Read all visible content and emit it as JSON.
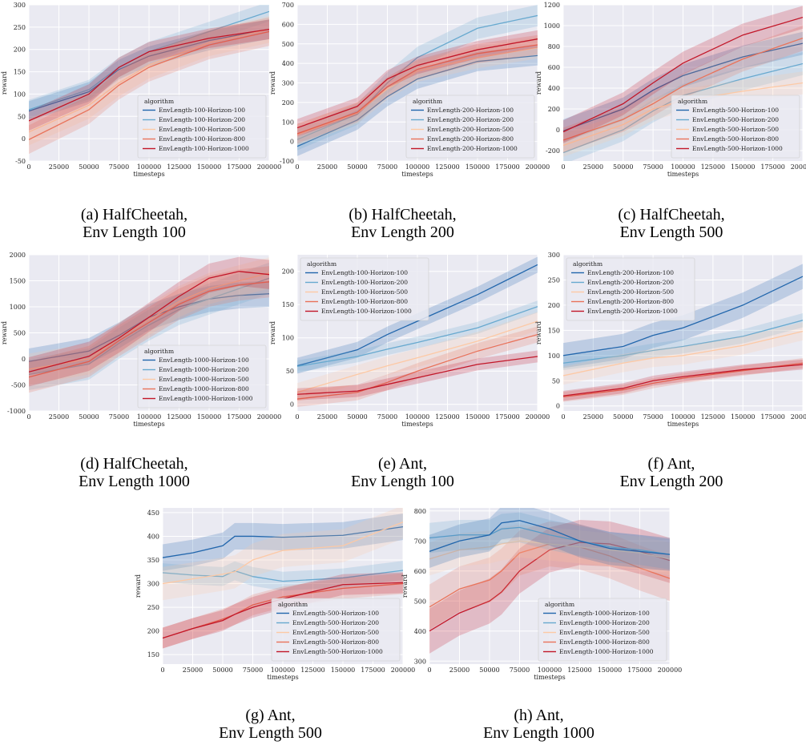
{
  "legend_title": "algorithm",
  "x_label": "timesteps",
  "y_label": "reward",
  "x_ticks": [
    0,
    25000,
    50000,
    75000,
    100000,
    125000,
    150000,
    175000,
    200000
  ],
  "colors": [
    "#2166ac",
    "#67a9cf",
    "#fdc9a5",
    "#e9735a",
    "#c21628"
  ],
  "captions": [
    {
      "line1": "(a) HalfCheetah,",
      "line2": "Env Length 100"
    },
    {
      "line1": "(b) HalfCheetah,",
      "line2": "Env Length 200"
    },
    {
      "line1": "(c) HalfCheetah,",
      "line2": "Env Length 500"
    },
    {
      "line1": "(d) HalfCheetah,",
      "line2": "Env Length 1000"
    },
    {
      "line1": "(e) Ant,",
      "line2": "Env Length 100"
    },
    {
      "line1": "(f) Ant,",
      "line2": "Env Length 200"
    },
    {
      "line1": "(g) Ant,",
      "line2": "Env Length 500"
    },
    {
      "line1": "(h) Ant,",
      "line2": "Env Length 1000"
    }
  ],
  "chart_data": [
    {
      "type": "line",
      "xlabel": "timesteps",
      "ylabel": "reward",
      "xlim": [
        0,
        200000
      ],
      "ylim": [
        -50,
        300
      ],
      "yticks": [
        -50,
        0,
        50,
        100,
        150,
        200,
        250,
        300
      ],
      "legend": "bottom-right",
      "grid": true,
      "x": [
        0,
        50000,
        75000,
        100000,
        150000,
        200000
      ],
      "series": [
        {
          "name": "EnvLength-100-Horizon-100",
          "values": [
            62,
            105,
            155,
            185,
            220,
            245
          ],
          "band": 22
        },
        {
          "name": "EnvLength-100-Horizon-200",
          "values": [
            65,
            110,
            160,
            195,
            240,
            285
          ],
          "band": 22
        },
        {
          "name": "EnvLength-100-Horizon-500",
          "values": [
            15,
            75,
            125,
            165,
            215,
            245
          ],
          "band": 30
        },
        {
          "name": "EnvLength-100-Horizon-800",
          "values": [
            -2,
            65,
            120,
            160,
            210,
            240
          ],
          "band": 32
        },
        {
          "name": "EnvLength-100-Horizon-1000",
          "values": [
            40,
            100,
            160,
            195,
            225,
            245
          ],
          "band": 22
        }
      ]
    },
    {
      "type": "line",
      "xlabel": "timesteps",
      "ylabel": "reward",
      "xlim": [
        0,
        200000
      ],
      "ylim": [
        -100,
        700
      ],
      "yticks": [
        -100,
        0,
        100,
        200,
        300,
        400,
        500,
        600,
        700
      ],
      "legend": "bottom-right",
      "grid": true,
      "x": [
        0,
        50000,
        75000,
        100000,
        150000,
        200000
      ],
      "series": [
        {
          "name": "EnvLength-200-Horizon-100",
          "values": [
            -25,
            110,
            230,
            320,
            410,
            440
          ],
          "band": 50
        },
        {
          "name": "EnvLength-200-Horizon-200",
          "values": [
            10,
            140,
            300,
            430,
            580,
            645
          ],
          "band": 55
        },
        {
          "name": "EnvLength-200-Horizon-500",
          "values": [
            35,
            145,
            270,
            360,
            430,
            480
          ],
          "band": 55
        },
        {
          "name": "EnvLength-200-Horizon-800",
          "values": [
            40,
            150,
            280,
            370,
            450,
            495
          ],
          "band": 50
        },
        {
          "name": "EnvLength-200-Horizon-1000",
          "values": [
            70,
            180,
            320,
            390,
            470,
            525
          ],
          "band": 45
        }
      ]
    },
    {
      "type": "line",
      "xlabel": "timesteps",
      "ylabel": "reward",
      "xlim": [
        0,
        200000
      ],
      "ylim": [
        -300,
        1200
      ],
      "yticks": [
        -200,
        0,
        200,
        400,
        600,
        800,
        1000,
        1200
      ],
      "legend": "bottom-right",
      "grid": true,
      "x": [
        0,
        50000,
        75000,
        100000,
        150000,
        200000
      ],
      "series": [
        {
          "name": "EnvLength-500-Horizon-100",
          "values": [
            -10,
            200,
            380,
            520,
            700,
            830
          ],
          "band": 110
        },
        {
          "name": "EnvLength-500-Horizon-200",
          "values": [
            -220,
            0,
            180,
            330,
            490,
            635
          ],
          "band": 110
        },
        {
          "name": "EnvLength-500-Horizon-500",
          "values": [
            -150,
            50,
            200,
            280,
            370,
            450
          ],
          "band": 110
        },
        {
          "name": "EnvLength-500-Horizon-800",
          "values": [
            -100,
            100,
            250,
            420,
            680,
            880
          ],
          "band": 120
        },
        {
          "name": "EnvLength-500-Horizon-1000",
          "values": [
            -20,
            250,
            450,
            640,
            910,
            1080
          ],
          "band": 110
        }
      ]
    },
    {
      "type": "line",
      "xlabel": "timesteps",
      "ylabel": "reward",
      "xlim": [
        0,
        200000
      ],
      "ylim": [
        -1000,
        2000
      ],
      "yticks": [
        -1000,
        -500,
        0,
        500,
        1000,
        1500,
        2000
      ],
      "legend": "bottom-right",
      "grid": true,
      "x": [
        0,
        50000,
        75000,
        100000,
        125000,
        150000,
        175000,
        200000
      ],
      "series": [
        {
          "name": "EnvLength-1000-Horizon-100",
          "values": [
            -50,
            150,
            450,
            800,
            1000,
            1150,
            1220,
            1250
          ],
          "band": 250
        },
        {
          "name": "EnvLength-1000-Horizon-200",
          "values": [
            -300,
            -100,
            300,
            650,
            950,
            1150,
            1350,
            1550
          ],
          "band": 300
        },
        {
          "name": "EnvLength-1000-Horizon-500",
          "values": [
            -200,
            0,
            400,
            750,
            1100,
            1350,
            1500,
            1650
          ],
          "band": 300
        },
        {
          "name": "EnvLength-1000-Horizon-800",
          "values": [
            -350,
            -50,
            350,
            700,
            1050,
            1300,
            1420,
            1480
          ],
          "band": 300
        },
        {
          "name": "EnvLength-1000-Horizon-1000",
          "values": [
            -250,
            50,
            400,
            800,
            1200,
            1550,
            1680,
            1620
          ],
          "band": 280
        }
      ]
    },
    {
      "type": "line",
      "xlabel": "timesteps",
      "ylabel": "reward",
      "xlim": [
        0,
        200000
      ],
      "ylim": [
        -10,
        225
      ],
      "yticks": [
        0,
        50,
        100,
        150,
        200
      ],
      "legend": "top-left",
      "grid": true,
      "x": [
        0,
        50000,
        75000,
        100000,
        150000,
        200000
      ],
      "series": [
        {
          "name": "EnvLength-100-Horizon-100",
          "values": [
            58,
            82,
            105,
            125,
            165,
            210
          ],
          "band": 12
        },
        {
          "name": "EnvLength-100-Horizon-200",
          "values": [
            57,
            72,
            83,
            93,
            115,
            147
          ],
          "band": 9
        },
        {
          "name": "EnvLength-100-Horizon-500",
          "values": [
            18,
            45,
            58,
            70,
            95,
            125
          ],
          "band": 14
        },
        {
          "name": "EnvLength-100-Horizon-800",
          "values": [
            8,
            18,
            33,
            50,
            80,
            105
          ],
          "band": 12
        },
        {
          "name": "EnvLength-100-Horizon-1000",
          "values": [
            15,
            20,
            30,
            40,
            60,
            72
          ],
          "band": 9
        }
      ]
    },
    {
      "type": "line",
      "xlabel": "timesteps",
      "ylabel": "reward",
      "xlim": [
        0,
        200000
      ],
      "ylim": [
        -10,
        300
      ],
      "yticks": [
        0,
        50,
        100,
        150,
        200,
        250,
        300
      ],
      "legend": "top-left",
      "grid": true,
      "x": [
        0,
        50000,
        75000,
        100000,
        150000,
        200000
      ],
      "series": [
        {
          "name": "EnvLength-200-Horizon-100",
          "values": [
            100,
            118,
            140,
            155,
            200,
            257
          ],
          "band": 25
        },
        {
          "name": "EnvLength-200-Horizon-200",
          "values": [
            85,
            100,
            110,
            118,
            138,
            170
          ],
          "band": 14
        },
        {
          "name": "EnvLength-200-Horizon-500",
          "values": [
            60,
            85,
            95,
            100,
            120,
            148
          ],
          "band": 18
        },
        {
          "name": "EnvLength-200-Horizon-800",
          "values": [
            18,
            32,
            45,
            55,
            70,
            85
          ],
          "band": 10
        },
        {
          "name": "EnvLength-200-Horizon-1000",
          "values": [
            20,
            35,
            50,
            58,
            72,
            82
          ],
          "band": 10
        }
      ]
    },
    {
      "type": "line",
      "xlabel": "timesteps",
      "ylabel": "reward",
      "xlim": [
        0,
        200000
      ],
      "ylim": [
        130,
        460
      ],
      "yticks": [
        150,
        200,
        250,
        300,
        350,
        400,
        450
      ],
      "legend": "bottom-right",
      "grid": true,
      "x": [
        0,
        25000,
        50000,
        60000,
        75000,
        100000,
        150000,
        200000
      ],
      "series": [
        {
          "name": "EnvLength-500-Horizon-100",
          "values": [
            355,
            365,
            380,
            400,
            400,
            398,
            402,
            420
          ],
          "band": 28
        },
        {
          "name": "EnvLength-500-Horizon-200",
          "values": [
            323,
            318,
            315,
            327,
            315,
            305,
            312,
            328
          ],
          "band": 20
        },
        {
          "name": "EnvLength-500-Horizon-500",
          "values": [
            300,
            310,
            320,
            325,
            350,
            370,
            380,
            430
          ],
          "band": 35
        },
        {
          "name": "EnvLength-500-Horizon-800",
          "values": [
            185,
            205,
            225,
            235,
            255,
            272,
            290,
            300
          ],
          "band": 22
        },
        {
          "name": "EnvLength-500-Horizon-1000",
          "values": [
            185,
            205,
            222,
            235,
            250,
            268,
            298,
            302
          ],
          "band": 22
        }
      ]
    },
    {
      "type": "line",
      "xlabel": "timesteps",
      "ylabel": "reward",
      "xlim": [
        0,
        200000
      ],
      "ylim": [
        290,
        810
      ],
      "yticks": [
        300,
        400,
        500,
        600,
        700,
        800
      ],
      "legend": "bottom-right",
      "grid": true,
      "x": [
        0,
        25000,
        50000,
        60000,
        75000,
        100000,
        125000,
        150000,
        175000,
        200000
      ],
      "series": [
        {
          "name": "EnvLength-1000-Horizon-1000",
          "values": [
            400,
            460,
            500,
            530,
            600,
            670,
            695,
            690,
            665,
            635
          ],
          "band": 75
        },
        {
          "name": "EnvLength-1000-Horizon-800",
          "values": [
            480,
            540,
            570,
            600,
            660,
            690,
            680,
            650,
            610,
            575
          ],
          "band": 75
        },
        {
          "name": "EnvLength-1000-Horizon-500",
          "values": [
            640,
            670,
            680,
            690,
            700,
            690,
            680,
            670,
            660,
            640
          ],
          "band": 55
        },
        {
          "name": "EnvLength-1000-Horizon-200",
          "values": [
            710,
            720,
            720,
            740,
            745,
            720,
            700,
            680,
            670,
            655
          ],
          "band": 50
        },
        {
          "name": "EnvLength-1000-Horizon-100",
          "values": [
            665,
            700,
            720,
            760,
            768,
            740,
            700,
            675,
            665,
            655
          ],
          "band": 55
        }
      ]
    }
  ]
}
